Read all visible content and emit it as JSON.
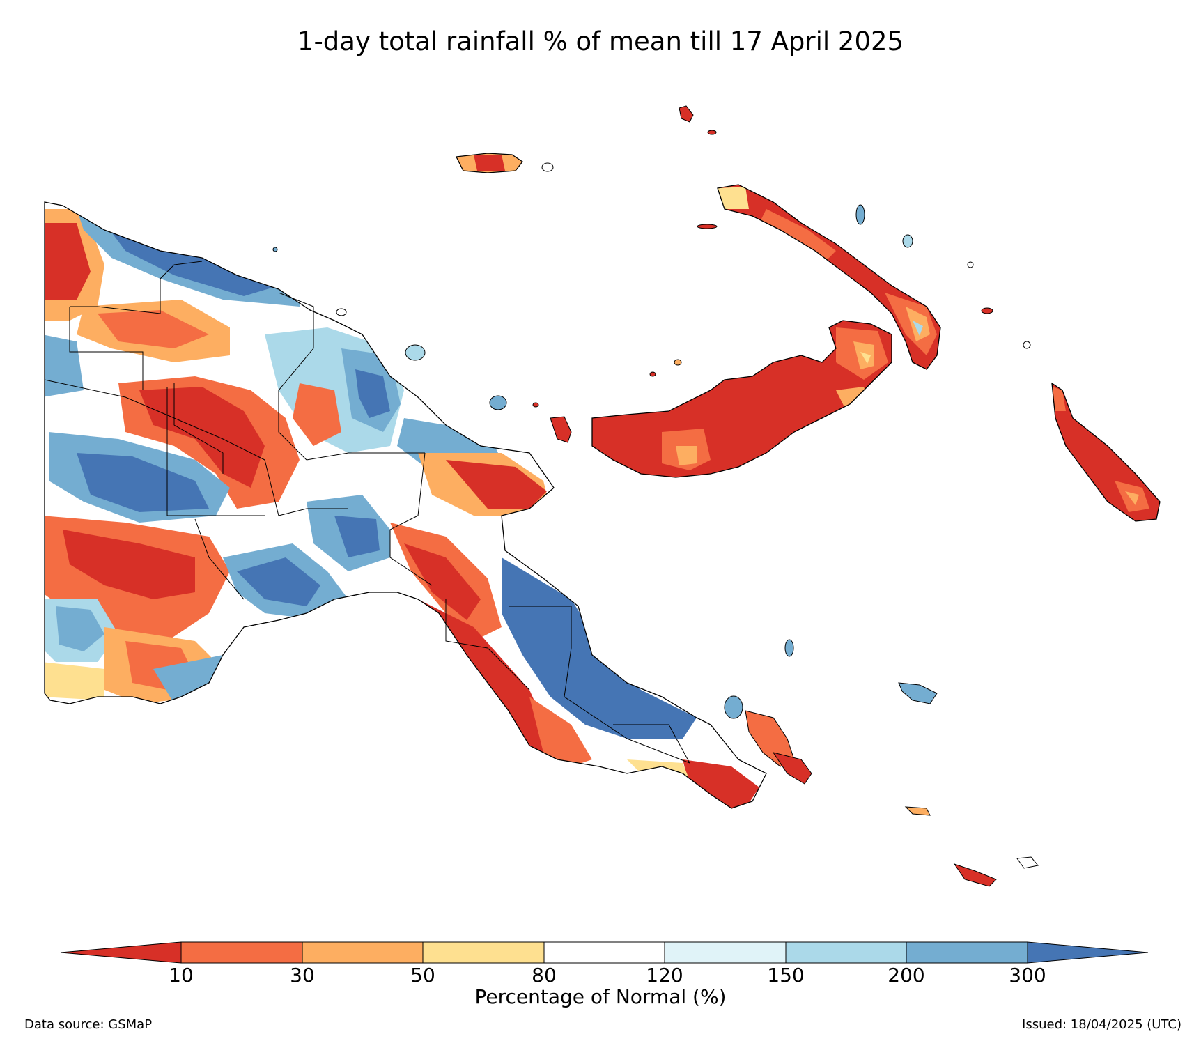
{
  "title": "1-day total rainfall % of mean till 17 April 2025",
  "colorbar": {
    "label": "Percentage of Normal (%)",
    "ticks": [
      "10",
      "30",
      "50",
      "80",
      "120",
      "150",
      "200",
      "300"
    ],
    "colors": [
      "#d73027",
      "#f46d43",
      "#fdae61",
      "#fee090",
      "#ffffff",
      "#e0f3f8",
      "#abd9e9",
      "#74add1",
      "#4575b4"
    ]
  },
  "footer": {
    "source": "Data source: GSMaP",
    "issued": "Issued: 18/04/2025 (UTC)"
  },
  "palette": {
    "red": "#d73027",
    "orange": "#f46d43",
    "lightorange": "#fdae61",
    "yellow": "#fee090",
    "white": "#ffffff",
    "palecyan": "#e0f3f8",
    "lightblue": "#abd9e9",
    "midblue": "#74add1",
    "blue": "#4575b4"
  }
}
